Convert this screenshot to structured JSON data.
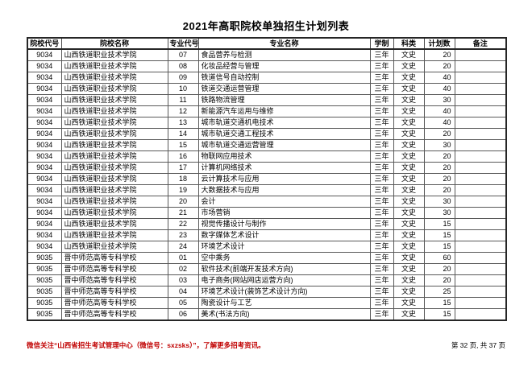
{
  "page": {
    "title": "2021年高职院校单独招生计划列表",
    "footer_notice": "微信关注“山西省招生考试管理中心（微信号：sxzsks）”，了解更多招考资讯。",
    "footer_page": "第 32 页, 共 37 页"
  },
  "colors": {
    "footer_notice_red": "#c00000",
    "table_border_outer": "#262626",
    "table_border_inner": "#595959"
  },
  "table": {
    "columns": [
      "院校代号",
      "院校名称",
      "专业代号",
      "专业名称",
      "学制",
      "科类",
      "计划数",
      "备注"
    ],
    "rows": [
      [
        "9034",
        "山西铁道职业技术学院",
        "07",
        "食品营养与检测",
        "三年",
        "文史",
        "20",
        ""
      ],
      [
        "9034",
        "山西铁道职业技术学院",
        "08",
        "化妆品经营与管理",
        "三年",
        "文史",
        "20",
        ""
      ],
      [
        "9034",
        "山西铁道职业技术学院",
        "09",
        "铁道信号自动控制",
        "三年",
        "文史",
        "40",
        ""
      ],
      [
        "9034",
        "山西铁道职业技术学院",
        "10",
        "铁道交通运营管理",
        "三年",
        "文史",
        "40",
        ""
      ],
      [
        "9034",
        "山西铁道职业技术学院",
        "11",
        "铁路物流管理",
        "三年",
        "文史",
        "30",
        ""
      ],
      [
        "9034",
        "山西铁道职业技术学院",
        "12",
        "新能源汽车运用与维修",
        "三年",
        "文史",
        "40",
        ""
      ],
      [
        "9034",
        "山西铁道职业技术学院",
        "13",
        "城市轨道交通机电技术",
        "三年",
        "文史",
        "40",
        ""
      ],
      [
        "9034",
        "山西铁道职业技术学院",
        "14",
        "城市轨道交通工程技术",
        "三年",
        "文史",
        "20",
        ""
      ],
      [
        "9034",
        "山西铁道职业技术学院",
        "15",
        "城市轨道交通运营管理",
        "三年",
        "文史",
        "30",
        ""
      ],
      [
        "9034",
        "山西铁道职业技术学院",
        "16",
        "物联网应用技术",
        "三年",
        "文史",
        "20",
        ""
      ],
      [
        "9034",
        "山西铁道职业技术学院",
        "17",
        "计算机网络技术",
        "三年",
        "文史",
        "20",
        ""
      ],
      [
        "9034",
        "山西铁道职业技术学院",
        "18",
        "云计算技术与应用",
        "三年",
        "文史",
        "20",
        ""
      ],
      [
        "9034",
        "山西铁道职业技术学院",
        "19",
        "大数据技术与应用",
        "三年",
        "文史",
        "20",
        ""
      ],
      [
        "9034",
        "山西铁道职业技术学院",
        "20",
        "会计",
        "三年",
        "文史",
        "30",
        ""
      ],
      [
        "9034",
        "山西铁道职业技术学院",
        "21",
        "市场营销",
        "三年",
        "文史",
        "30",
        ""
      ],
      [
        "9034",
        "山西铁道职业技术学院",
        "22",
        "视觉传播设计与制作",
        "三年",
        "文史",
        "15",
        ""
      ],
      [
        "9034",
        "山西铁道职业技术学院",
        "23",
        "数字媒体艺术设计",
        "三年",
        "文史",
        "15",
        ""
      ],
      [
        "9034",
        "山西铁道职业技术学院",
        "24",
        "环境艺术设计",
        "三年",
        "文史",
        "15",
        ""
      ],
      [
        "9035",
        "晋中师范高等专科学校",
        "01",
        "空中乘务",
        "三年",
        "文史",
        "60",
        ""
      ],
      [
        "9035",
        "晋中师范高等专科学校",
        "02",
        "软件技术(前端开发技术方向)",
        "三年",
        "文史",
        "20",
        ""
      ],
      [
        "9035",
        "晋中师范高等专科学校",
        "03",
        "电子商务(网站网店运营方向)",
        "三年",
        "文史",
        "20",
        ""
      ],
      [
        "9035",
        "晋中师范高等专科学校",
        "04",
        "环境艺术设计(装饰艺术设计方向)",
        "三年",
        "文史",
        "25",
        ""
      ],
      [
        "9035",
        "晋中师范高等专科学校",
        "05",
        "陶瓷设计与工艺",
        "三年",
        "文史",
        "15",
        ""
      ],
      [
        "9035",
        "晋中师范高等专科学校",
        "06",
        "美术(书法方向)",
        "三年",
        "文史",
        "15",
        ""
      ]
    ]
  }
}
